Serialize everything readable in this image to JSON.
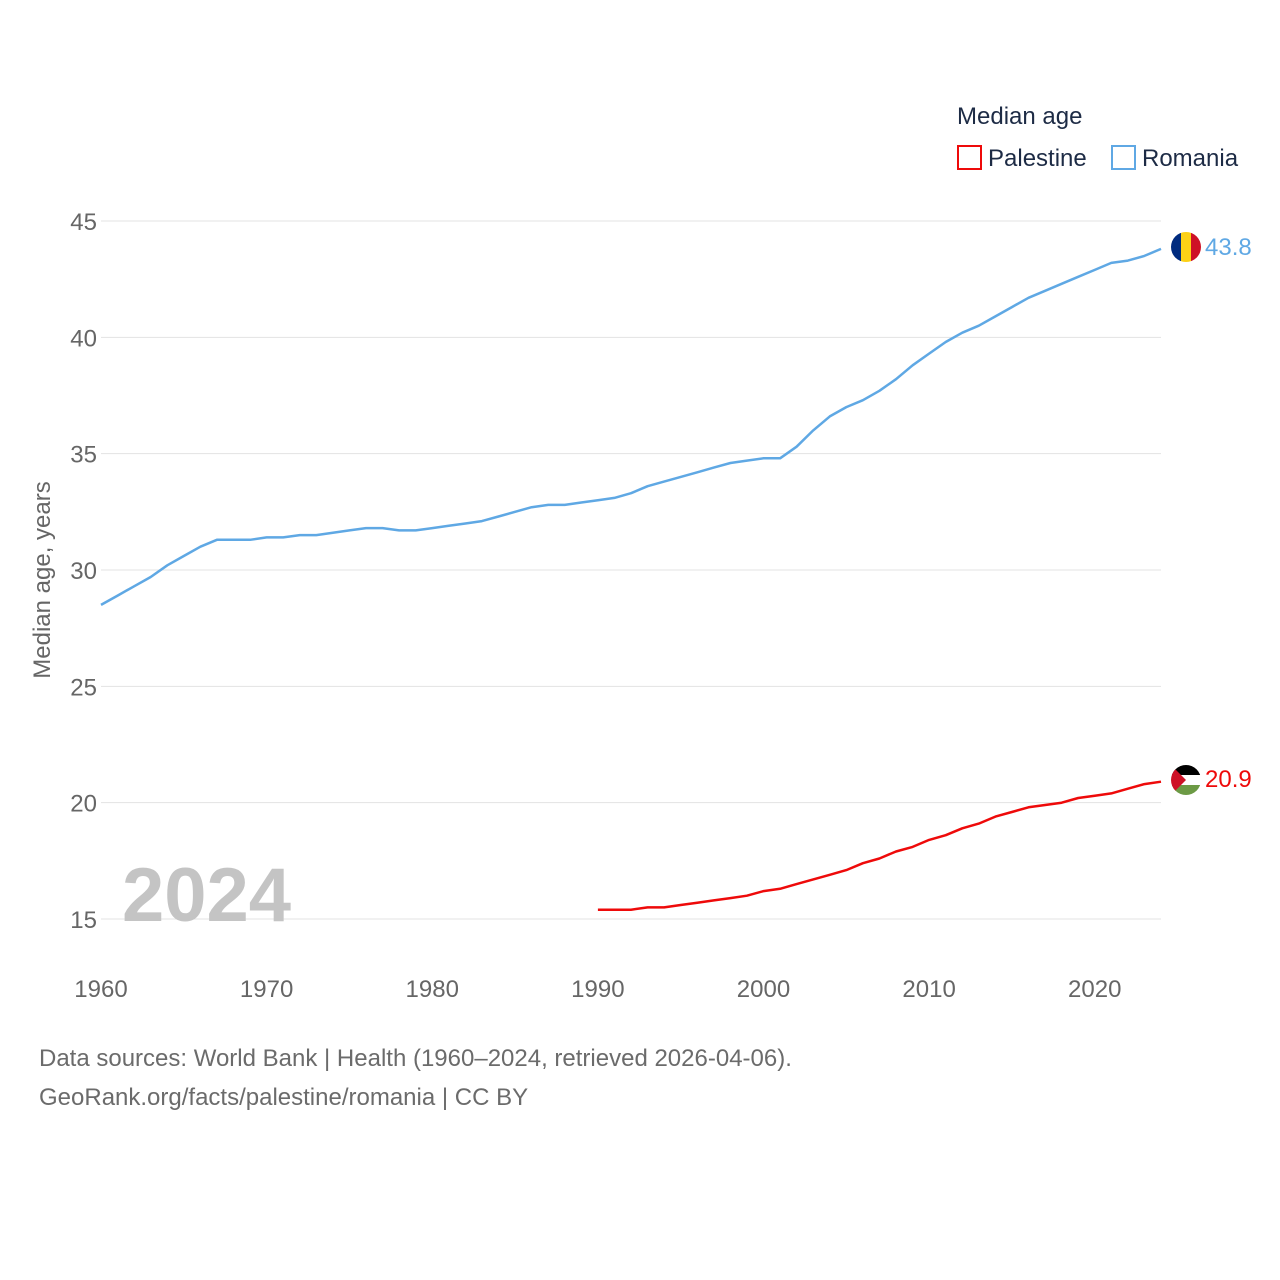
{
  "chart_data": {
    "type": "line",
    "title": "Median age",
    "ylabel": "Median age, years",
    "xlabel": "",
    "xlim": [
      1960,
      2024
    ],
    "ylim": [
      13,
      46
    ],
    "y_ticks": [
      15,
      20,
      25,
      30,
      35,
      40,
      45
    ],
    "x_ticks": [
      1960,
      1970,
      1980,
      1990,
      2000,
      2010,
      2020
    ],
    "grid": true,
    "legend_position": "top-right",
    "year_label": "2024",
    "series": [
      {
        "name": "Palestine",
        "color": "#ee0a0a",
        "end_label": "20.9",
        "flag": "palestine-flag",
        "x": [
          1990,
          1991,
          1992,
          1993,
          1994,
          1995,
          1996,
          1997,
          1998,
          1999,
          2000,
          2001,
          2002,
          2003,
          2004,
          2005,
          2006,
          2007,
          2008,
          2009,
          2010,
          2011,
          2012,
          2013,
          2014,
          2015,
          2016,
          2017,
          2018,
          2019,
          2020,
          2021,
          2022,
          2023,
          2024
        ],
        "values": [
          15.4,
          15.4,
          15.4,
          15.5,
          15.5,
          15.6,
          15.7,
          15.8,
          15.9,
          16.0,
          16.2,
          16.3,
          16.5,
          16.7,
          16.9,
          17.1,
          17.4,
          17.6,
          17.9,
          18.1,
          18.4,
          18.6,
          18.9,
          19.1,
          19.4,
          19.6,
          19.8,
          19.9,
          20.0,
          20.2,
          20.3,
          20.4,
          20.6,
          20.8,
          20.9
        ]
      },
      {
        "name": "Romania",
        "color": "#5fa8e4",
        "end_label": "43.8",
        "flag": "romania-flag",
        "x": [
          1960,
          1961,
          1962,
          1963,
          1964,
          1965,
          1966,
          1967,
          1968,
          1969,
          1970,
          1971,
          1972,
          1973,
          1974,
          1975,
          1976,
          1977,
          1978,
          1979,
          1980,
          1981,
          1982,
          1983,
          1984,
          1985,
          1986,
          1987,
          1988,
          1989,
          1990,
          1991,
          1992,
          1993,
          1994,
          1995,
          1996,
          1997,
          1998,
          1999,
          2000,
          2001,
          2002,
          2003,
          2004,
          2005,
          2006,
          2007,
          2008,
          2009,
          2010,
          2011,
          2012,
          2013,
          2014,
          2015,
          2016,
          2017,
          2018,
          2019,
          2020,
          2021,
          2022,
          2023,
          2024
        ],
        "values": [
          28.5,
          28.9,
          29.3,
          29.7,
          30.2,
          30.6,
          31.0,
          31.3,
          31.3,
          31.3,
          31.4,
          31.4,
          31.5,
          31.5,
          31.6,
          31.7,
          31.8,
          31.8,
          31.7,
          31.7,
          31.8,
          31.9,
          32.0,
          32.1,
          32.3,
          32.5,
          32.7,
          32.8,
          32.8,
          32.9,
          33.0,
          33.1,
          33.3,
          33.6,
          33.8,
          34.0,
          34.2,
          34.4,
          34.6,
          34.7,
          34.8,
          34.8,
          35.3,
          36.0,
          36.6,
          37.0,
          37.3,
          37.7,
          38.2,
          38.8,
          39.3,
          39.8,
          40.2,
          40.5,
          40.9,
          41.3,
          41.7,
          42.0,
          42.3,
          42.6,
          42.9,
          43.2,
          43.3,
          43.5,
          43.8
        ]
      }
    ]
  },
  "footer": {
    "line1": "Data sources: World Bank | Health (1960–2024, retrieved 2026-04-06).",
    "line2": "GeoRank.org/facts/palestine/romania | CC BY"
  }
}
